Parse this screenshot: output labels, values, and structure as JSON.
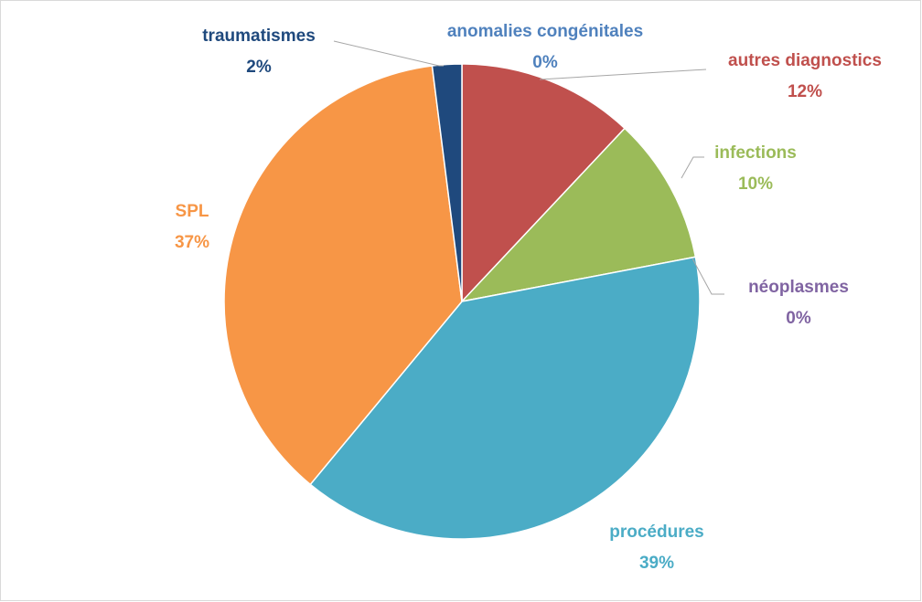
{
  "chart_data": {
    "type": "pie",
    "categories": [
      "anomalies congénitales",
      "autres diagnostics",
      "infections",
      "néoplasmes",
      "procédures",
      "SPL",
      "traumatismes"
    ],
    "values": [
      0,
      12,
      10,
      0,
      39,
      37,
      2
    ],
    "value_labels": [
      "0%",
      "12%",
      "10%",
      "0%",
      "39%",
      "37%",
      "2%"
    ],
    "colors": [
      "#4f81bd",
      "#c0504d",
      "#9bbb59",
      "#8064a2",
      "#4bacc6",
      "#f79646",
      "#1f497d"
    ]
  }
}
